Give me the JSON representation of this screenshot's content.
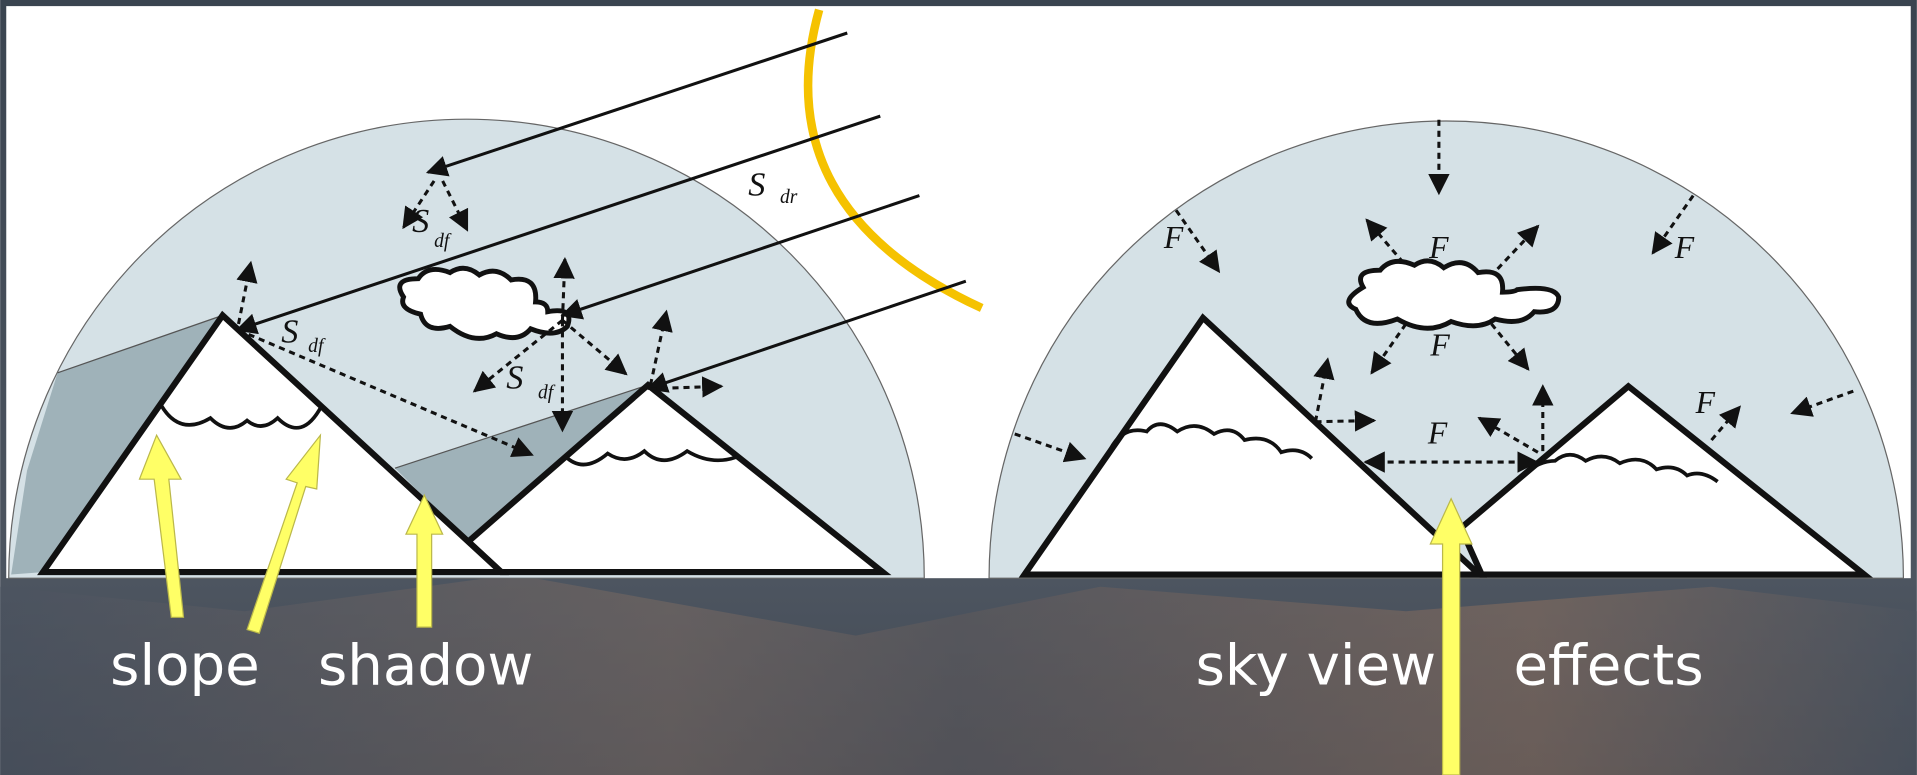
{
  "left_panel": {
    "labels": [
      {
        "symbol": "S",
        "subscript": "dr"
      },
      {
        "symbol": "S",
        "subscript": "df"
      },
      {
        "symbol": "S",
        "subscript": "df"
      },
      {
        "symbol": "S",
        "subscript": "df"
      }
    ]
  },
  "right_panel": {
    "labels": [
      "F",
      "F",
      "F",
      "F",
      "F",
      "F"
    ]
  },
  "captions": [
    "slope",
    "shadow",
    "sky view",
    "effects"
  ]
}
